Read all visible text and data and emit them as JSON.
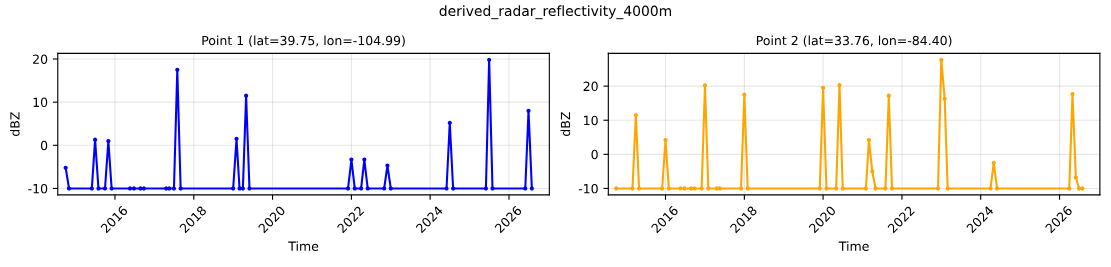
{
  "chart_data": [
    {
      "type": "line",
      "title": "Point 1 (lat=39.75, lon=-104.99)",
      "xlabel": "Time",
      "ylabel": "dBZ",
      "annotations": [
        "derived_radar_reflectivity_4000m"
      ],
      "x": [
        "2014-10",
        "2014-11",
        "2015-06",
        "2015-07",
        "2015-08",
        "2015-10",
        "2015-11",
        "2015-12",
        "2016-05-20",
        "2016-06-08",
        "2016-06-25",
        "2016-08-25",
        "2016-09-08",
        "2016-09-25",
        "2017-04-20",
        "2017-05-05",
        "2017-05-18",
        "2017-07",
        "2017-08",
        "2017-09",
        "2019-01",
        "2019-02",
        "2019-03",
        "2019-04",
        "2019-05",
        "2019-06",
        "2021-12",
        "2022-01",
        "2022-02",
        "2022-04",
        "2022-05",
        "2022-06",
        "2022-11",
        "2022-12",
        "2023-01",
        "2024-06",
        "2024-07",
        "2024-08",
        "2025-06",
        "2025-07",
        "2025-08",
        "2026-06",
        "2026-07",
        "2026-08"
      ],
      "series": [
        {
          "color": "#0000ff",
          "values": [
            -5.2,
            -10,
            -10,
            1.3,
            -10,
            -10,
            1.0,
            -10,
            -10,
            null,
            -10,
            -10,
            null,
            -10,
            -10,
            null,
            -10,
            -10,
            17.5,
            -10,
            -10,
            1.5,
            -10,
            -10,
            11.5,
            -10,
            -10,
            -3.3,
            -10,
            -10,
            -3.3,
            -10,
            -10,
            -4.7,
            -10,
            -10,
            5.2,
            -10,
            -10,
            19.8,
            -10,
            -10,
            8.0,
            -10
          ]
        }
      ],
      "xlim": [
        "2014-07-20",
        "2027-01-10"
      ],
      "xticks": [
        {
          "value": "2016-01-01",
          "label": "2016"
        },
        {
          "value": "2018-01-01",
          "label": "2018"
        },
        {
          "value": "2020-01-01",
          "label": "2020"
        },
        {
          "value": "2022-01-01",
          "label": "2022"
        },
        {
          "value": "2024-01-01",
          "label": "2024"
        },
        {
          "value": "2026-01-01",
          "label": "2026"
        }
      ],
      "ylim": [
        -11.5,
        21.3
      ],
      "yticks": [
        -10,
        0,
        10,
        20
      ],
      "grid": true,
      "marker": "circle",
      "line_style": "solid"
    },
    {
      "type": "line",
      "title": "Point 2 (lat=33.76, lon=-84.40)",
      "xlabel": "Time",
      "ylabel": "dBZ",
      "x": [
        "2014-10",
        "2015-03",
        "2015-04",
        "2015-05",
        "2015-12",
        "2016-01",
        "2016-02",
        "2016-05-20",
        "2016-06-08",
        "2016-06-25",
        "2016-08-25",
        "2016-09-08",
        "2016-09-25",
        "2016-12",
        "2017-01",
        "2017-02",
        "2017-04-20",
        "2017-05-05",
        "2017-05-18",
        "2017-12",
        "2018-01",
        "2018-02",
        "2019-12",
        "2020-01",
        "2020-02",
        "2020-05",
        "2020-06",
        "2020-07",
        "2021-02",
        "2021-03",
        "2021-04",
        "2021-05",
        "2021-08",
        "2021-09",
        "2021-10",
        "2022-12",
        "2023-01",
        "2023-02",
        "2023-03",
        "2024-04",
        "2024-05",
        "2024-06",
        "2026-04",
        "2026-05",
        "2026-06",
        "2026-07",
        "2026-08"
      ],
      "series": [
        {
          "color": "#ffa500",
          "values": [
            -10,
            -10,
            11.5,
            -10,
            -10,
            4.2,
            -10,
            -10,
            null,
            -10,
            -10,
            null,
            -10,
            -10,
            20.2,
            -10,
            -10,
            null,
            -10,
            -10,
            17.5,
            -10,
            -10,
            19.5,
            -10,
            -10,
            20.3,
            -10,
            -10,
            4.2,
            -5,
            -10,
            -10,
            17.2,
            -10,
            -10,
            27.7,
            16.3,
            -10,
            -10,
            -2.5,
            -10,
            -10,
            17.7,
            -6.8,
            -10,
            -10
          ]
        }
      ],
      "xlim": [
        "2014-07-20",
        "2027-01-10"
      ],
      "xticks": [
        {
          "value": "2016-01-01",
          "label": "2016"
        },
        {
          "value": "2018-01-01",
          "label": "2018"
        },
        {
          "value": "2020-01-01",
          "label": "2020"
        },
        {
          "value": "2022-01-01",
          "label": "2022"
        },
        {
          "value": "2024-01-01",
          "label": "2024"
        },
        {
          "value": "2026-01-01",
          "label": "2026"
        }
      ],
      "ylim": [
        -11.9,
        29.6
      ],
      "yticks": [
        -10,
        0,
        10,
        20
      ],
      "grid": true,
      "marker": "circle",
      "line_style": "solid"
    }
  ]
}
